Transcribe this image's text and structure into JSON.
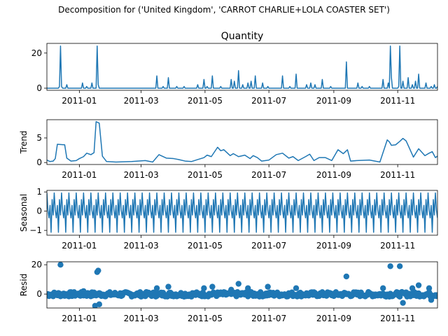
{
  "figure": {
    "suptitle": "Decomposition for ('United Kingdom', 'CARROT CHARLIE+LOLA COASTER SET')"
  },
  "chart_data": [
    {
      "type": "line",
      "panel": "observed",
      "title": "Quantity",
      "ylabel": "",
      "color": "#1f77b4",
      "xlim": [
        "2010-12-01",
        "2011-12-09"
      ],
      "ylim": [
        -1.2,
        25.5
      ],
      "yticks": [
        0,
        20
      ],
      "xticks": [
        "2011-01",
        "2011-03",
        "2011-05",
        "2011-07",
        "2011-09",
        "2011-11"
      ],
      "x": [
        "2010-12-01",
        "2010-12-13",
        "2010-12-14",
        "2010-12-15",
        "2010-12-20",
        "2010-12-28",
        "2011-01-02",
        "2011-01-04",
        "2011-01-08",
        "2011-01-13",
        "2011-01-18",
        "2011-01-19",
        "2011-01-24",
        "2011-02-14",
        "2011-02-22",
        "2011-03-04",
        "2011-03-16",
        "2011-03-22",
        "2011-03-27",
        "2011-04-04",
        "2011-04-11",
        "2011-04-24",
        "2011-04-30",
        "2011-05-03",
        "2011-05-08",
        "2011-05-16",
        "2011-05-26",
        "2011-05-29",
        "2011-06-02",
        "2011-06-06",
        "2011-06-11",
        "2011-06-14",
        "2011-06-18",
        "2011-06-25",
        "2011-06-30",
        "2011-07-14",
        "2011-07-21",
        "2011-07-27",
        "2011-08-06",
        "2011-08-10",
        "2011-08-14",
        "2011-08-21",
        "2011-08-29",
        "2011-09-13",
        "2011-09-24",
        "2011-09-28",
        "2011-10-05",
        "2011-10-18",
        "2011-10-23",
        "2011-10-25",
        "2011-10-26",
        "2011-11-02",
        "2011-11-03",
        "2011-11-06",
        "2011-11-11",
        "2011-11-15",
        "2011-11-18",
        "2011-11-21",
        "2011-11-28",
        "2011-12-03",
        "2011-12-06",
        "2011-12-09"
      ],
      "y": [
        0,
        1,
        24,
        1,
        2,
        0,
        0,
        3,
        1,
        3,
        24,
        2,
        0,
        0,
        0,
        0,
        7,
        1,
        6,
        1,
        1,
        2,
        5,
        1,
        7,
        1,
        5,
        4,
        10,
        2,
        3,
        4,
        7,
        3,
        1,
        7,
        1,
        8,
        2,
        3,
        2,
        5,
        1,
        15,
        3,
        1,
        1,
        5,
        3,
        24,
        6,
        1,
        24,
        4,
        6,
        2,
        4,
        8,
        3,
        1,
        2,
        1
      ]
    },
    {
      "type": "line",
      "panel": "trend",
      "title": "",
      "ylabel": "Trend",
      "color": "#1f77b4",
      "xlim": [
        "2010-12-01",
        "2011-12-09"
      ],
      "ylim": [
        -0.4,
        8.7
      ],
      "yticks": [
        0,
        5
      ],
      "xticks": [
        "2011-01",
        "2011-03",
        "2011-05",
        "2011-07",
        "2011-09",
        "2011-11"
      ],
      "x": [
        "2010-12-01",
        "2010-12-04",
        "2010-12-07",
        "2010-12-09",
        "2010-12-11",
        "2010-12-18",
        "2010-12-20",
        "2010-12-24",
        "2010-12-29",
        "2011-01-01",
        "2011-01-05",
        "2011-01-08",
        "2011-01-12",
        "2011-01-15",
        "2011-01-17",
        "2011-01-20",
        "2011-01-23",
        "2011-01-27",
        "2011-02-05",
        "2011-02-20",
        "2011-03-05",
        "2011-03-12",
        "2011-03-18",
        "2011-03-25",
        "2011-04-01",
        "2011-04-06",
        "2011-04-12",
        "2011-04-18",
        "2011-04-24",
        "2011-04-30",
        "2011-05-03",
        "2011-05-07",
        "2011-05-13",
        "2011-05-16",
        "2011-05-19",
        "2011-05-25",
        "2011-05-28",
        "2011-06-02",
        "2011-06-08",
        "2011-06-13",
        "2011-06-16",
        "2011-06-20",
        "2011-06-24",
        "2011-07-01",
        "2011-07-08",
        "2011-07-14",
        "2011-07-20",
        "2011-07-24",
        "2011-07-29",
        "2011-08-05",
        "2011-08-09",
        "2011-08-13",
        "2011-08-18",
        "2011-08-24",
        "2011-08-30",
        "2011-09-05",
        "2011-09-10",
        "2011-09-14",
        "2011-09-17",
        "2011-09-23",
        "2011-10-05",
        "2011-10-15",
        "2011-10-22",
        "2011-10-24",
        "2011-10-26",
        "2011-10-30",
        "2011-11-03",
        "2011-11-06",
        "2011-11-09",
        "2011-11-12",
        "2011-11-16",
        "2011-11-21",
        "2011-11-27",
        "2011-12-01",
        "2011-12-04",
        "2011-12-07",
        "2011-12-09"
      ],
      "y": [
        0.5,
        0.2,
        0.3,
        0.8,
        3.7,
        3.6,
        0.9,
        0.3,
        0.4,
        0.8,
        1.2,
        1.9,
        1.6,
        2.0,
        8.3,
        8.0,
        1.3,
        0.2,
        0.1,
        0.2,
        0.4,
        0.1,
        1.6,
        0.9,
        0.8,
        0.6,
        0.3,
        0.2,
        0.6,
        1.0,
        1.5,
        1.2,
        3.1,
        2.4,
        2.6,
        1.4,
        1.8,
        1.2,
        1.5,
        0.8,
        1.4,
        1.0,
        0.3,
        0.5,
        1.6,
        1.9,
        0.9,
        1.2,
        0.4,
        1.2,
        1.7,
        0.4,
        1.0,
        1.0,
        0.4,
        2.6,
        1.8,
        2.6,
        0.3,
        0.4,
        0.5,
        0.1,
        4.6,
        4.2,
        3.5,
        3.6,
        4.3,
        4.9,
        4.4,
        3.0,
        1.1,
        2.8,
        1.4,
        1.9,
        2.2,
        1.0,
        1.3
      ]
    },
    {
      "type": "line",
      "panel": "seasonal",
      "title": "",
      "ylabel": "Seasonal",
      "color": "#1f77b4",
      "xlim": [
        "2010-12-01",
        "2011-12-09"
      ],
      "ylim": [
        -1.25,
        1.08
      ],
      "yticks": [
        -1,
        0,
        1
      ],
      "xticks": [
        "2011-01",
        "2011-03",
        "2011-05",
        "2011-07",
        "2011-09",
        "2011-11"
      ],
      "period_days": 7,
      "weekly_pattern": [
        0.95,
        0.05,
        -0.35,
        0.3,
        -1.1,
        0.6,
        -0.2
      ]
    },
    {
      "type": "scatter",
      "panel": "resid",
      "title": "",
      "ylabel": "Resid",
      "color": "#1f77b4",
      "xlim": [
        "2010-12-01",
        "2011-12-09"
      ],
      "ylim": [
        -9.5,
        22
      ],
      "yticks": [
        0,
        20
      ],
      "xticks": [
        "2011-01",
        "2011-03",
        "2011-05",
        "2011-07",
        "2011-09",
        "2011-11"
      ],
      "baseline": 0,
      "points": [
        {
          "x": "2010-12-14",
          "y": 20
        },
        {
          "x": "2011-01-18",
          "y": 15
        },
        {
          "x": "2011-01-19",
          "y": 16
        },
        {
          "x": "2011-01-16",
          "y": -8
        },
        {
          "x": "2011-01-20",
          "y": -7
        },
        {
          "x": "2011-01-05",
          "y": 2
        },
        {
          "x": "2011-03-16",
          "y": 4
        },
        {
          "x": "2011-03-27",
          "y": 5
        },
        {
          "x": "2011-04-30",
          "y": 4
        },
        {
          "x": "2011-05-08",
          "y": 5
        },
        {
          "x": "2011-05-26",
          "y": 3
        },
        {
          "x": "2011-06-02",
          "y": 7
        },
        {
          "x": "2011-06-11",
          "y": 4
        },
        {
          "x": "2011-06-30",
          "y": 5
        },
        {
          "x": "2011-07-27",
          "y": 4
        },
        {
          "x": "2011-09-13",
          "y": 12
        },
        {
          "x": "2011-10-18",
          "y": 4
        },
        {
          "x": "2011-10-25",
          "y": 19
        },
        {
          "x": "2011-11-03",
          "y": 19
        },
        {
          "x": "2011-11-15",
          "y": 4
        },
        {
          "x": "2011-11-21",
          "y": 6
        },
        {
          "x": "2011-12-01",
          "y": 4
        },
        {
          "x": "2011-11-06",
          "y": -6
        },
        {
          "x": "2011-12-03",
          "y": -4
        }
      ]
    }
  ]
}
